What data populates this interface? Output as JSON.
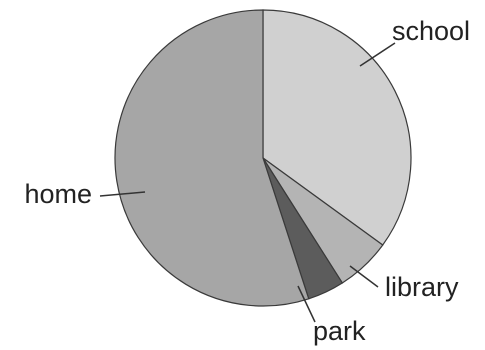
{
  "chart_data": {
    "type": "pie",
    "categories": [
      "school",
      "library",
      "park",
      "home"
    ],
    "values": [
      35,
      6,
      4,
      55
    ],
    "colors": [
      "#d0d0d0",
      "#b4b4b4",
      "#5c5c5c",
      "#a6a6a6"
    ],
    "title": "",
    "legend": "none (direct labels with leader lines)"
  }
}
